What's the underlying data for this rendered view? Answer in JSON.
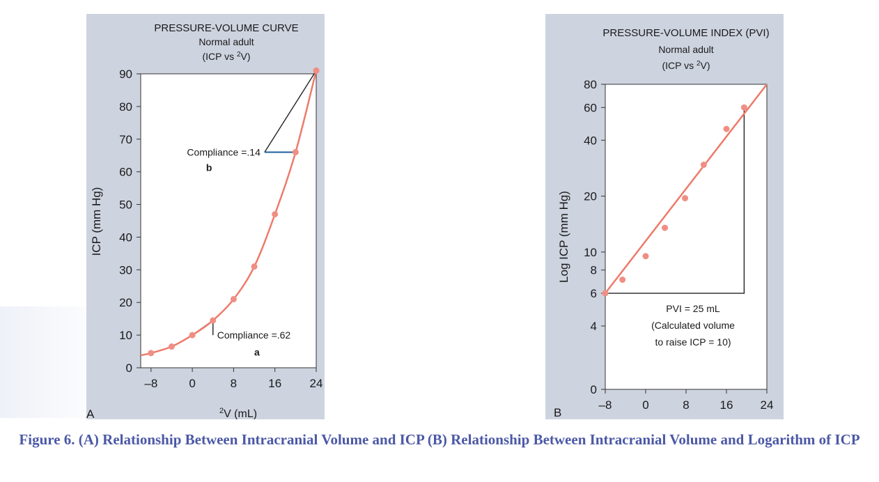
{
  "chart_data": [
    {
      "type": "line",
      "panel_letter": "A",
      "title": "PRESSURE-VOLUME CURVE",
      "subtitle_1": "Normal adult",
      "subtitle_2_pre": "(ICP vs ",
      "subtitle_2_sup": "2",
      "subtitle_2_post": "V)",
      "ylabel": "ICP (mm Hg)",
      "xlabel_sup": "2",
      "xlabel": "V (mL)",
      "xlim": [
        -10,
        24
      ],
      "ylim": [
        0,
        90
      ],
      "xticks": [
        -8,
        0,
        8,
        16,
        24
      ],
      "xtick_labels": [
        "–8",
        "0",
        "8",
        "16",
        "24"
      ],
      "yticks": [
        0,
        10,
        20,
        30,
        40,
        50,
        60,
        70,
        80,
        90
      ],
      "ytick_labels": [
        "0",
        "10",
        "20",
        "30",
        "40",
        "50",
        "60",
        "70",
        "80",
        "90"
      ],
      "series": [
        {
          "x": [
            -8,
            -4,
            0,
            4,
            8,
            12,
            16,
            20,
            24
          ],
          "y": [
            4.5,
            6.5,
            10,
            14.5,
            21,
            31,
            47,
            66,
            91
          ]
        }
      ],
      "curve_start": {
        "x": -10,
        "y": 3.8
      },
      "annotations": [
        {
          "text": "Compliance =.62",
          "letter": "a",
          "triangle": [
            [
              0,
              10
            ],
            [
              4,
              14.5
            ],
            [
              4,
              10
            ]
          ]
        },
        {
          "text": "Compliance =.14",
          "letter": "b",
          "triangle": [
            [
              24,
              91
            ],
            [
              14,
              66
            ],
            [
              20,
              66
            ]
          ]
        }
      ]
    },
    {
      "type": "line",
      "panel_letter": "B",
      "title": "PRESSURE-VOLUME INDEX (PVI)",
      "subtitle_1": "Normal adult",
      "subtitle_2_pre": "(ICP vs ",
      "subtitle_2_sup": "2",
      "subtitle_2_post": "V)",
      "ylabel": "Log ICP (mm Hg)",
      "yscale": "log",
      "xlim": [
        -8,
        24
      ],
      "ylim": [
        4,
        80
      ],
      "xticks": [
        -8,
        0,
        8,
        16,
        24
      ],
      "xtick_labels": [
        "–8",
        "0",
        "8",
        "16",
        "24"
      ],
      "yticks": [
        4,
        6,
        8,
        10,
        20,
        40,
        60,
        80
      ],
      "ytick_labels": [
        "4",
        "6",
        "8",
        "10",
        "20",
        "40",
        "60",
        "80"
      ],
      "y_zero_label": "0",
      "series": [
        {
          "x": [
            -8,
            -4.6,
            0,
            3.8,
            7.8,
            11.5,
            16,
            19.5
          ],
          "y": [
            6,
            7.1,
            9.5,
            13.5,
            19.5,
            29.5,
            46,
            60
          ]
        }
      ],
      "line_end": {
        "x": 24,
        "y": 80
      },
      "annotations": [
        {
          "text_lines": [
            "PVI = 25 mL",
            "(Calculated volume",
            "to raise ICP = 10)"
          ],
          "triangle": [
            [
              -8,
              6
            ],
            [
              19.5,
              60
            ],
            [
              19.5,
              6
            ]
          ]
        }
      ]
    }
  ],
  "caption": "Figure 6. (A) Relationship Between Intracranial Volume and ICP (B) Relationship Between Intracranial Volume and Logarithm of ICP",
  "colors": {
    "panel_bg": "#cdd3df",
    "plot_bg": "#ffffff",
    "curve": "#ee7a6a",
    "marker": "#ef8f84",
    "caption": "#4b58a6"
  }
}
